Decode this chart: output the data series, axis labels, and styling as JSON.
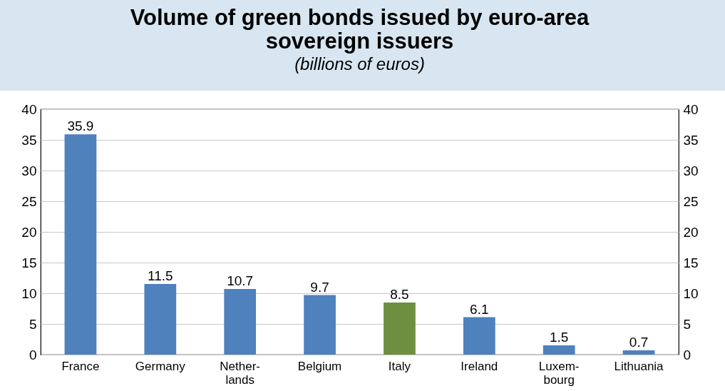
{
  "chart_data": {
    "type": "bar",
    "title": "Volume of green bonds issued by euro-area\nsovereign issuers",
    "subtitle": "(billions of euros)",
    "categories": [
      "France",
      "Germany",
      "Nether-\nlands",
      "Belgium",
      "Italy",
      "Ireland",
      "Luxem-\nbourg",
      "Lithuania"
    ],
    "values": [
      35.9,
      11.5,
      10.7,
      9.7,
      8.5,
      6.1,
      1.5,
      0.7
    ],
    "colors": [
      "#4f81bd",
      "#4f81bd",
      "#4f81bd",
      "#4f81bd",
      "#6e8f3f",
      "#4f81bd",
      "#4f81bd",
      "#4f81bd"
    ],
    "ylim": [
      0,
      40
    ],
    "yticks": [
      0,
      5,
      10,
      15,
      20,
      25,
      30,
      35,
      40
    ],
    "y2lim": [
      0,
      40
    ],
    "y2ticks": [
      0,
      5,
      10,
      15,
      20,
      25,
      30,
      35,
      40
    ],
    "grid": "y",
    "data_labels": true
  }
}
